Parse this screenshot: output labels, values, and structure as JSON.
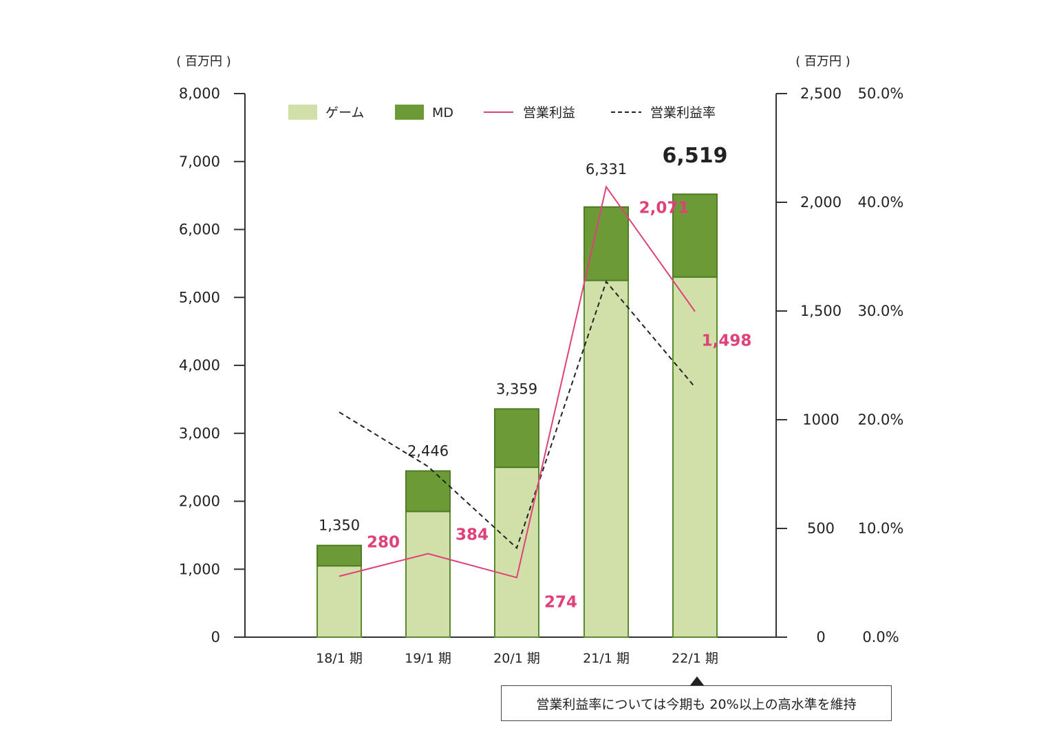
{
  "chart_data": {
    "type": "bar",
    "categories": [
      "18/1 期",
      "19/1 期",
      "20/1 期",
      "21/1 期",
      "22/1 期"
    ],
    "series": [
      {
        "name": "ゲーム",
        "type": "bar",
        "stack": "sales",
        "axis": "left",
        "color": "#d1e0a8",
        "stroke": "#5a8a2e",
        "values": [
          1050,
          1850,
          2500,
          5250,
          5300
        ]
      },
      {
        "name": "MD",
        "type": "bar",
        "stack": "sales",
        "axis": "left",
        "color": "#6b9a37",
        "stroke": "#4f7a26",
        "values": [
          300,
          596,
          859,
          1081,
          1219
        ]
      },
      {
        "name": "営業利益",
        "type": "line",
        "axis": "right",
        "color": "#e0407a",
        "values": [
          280,
          384,
          274,
          2071,
          1498
        ]
      },
      {
        "name": "営業利益率",
        "type": "line",
        "axis": "right2",
        "style": "dashed",
        "color": "#222222",
        "values": [
          20.7,
          15.7,
          8.2,
          32.7,
          23.0
        ]
      }
    ],
    "total_labels": [
      "1,350",
      "2,446",
      "3,359",
      "6,331",
      "6,519"
    ],
    "profit_labels": [
      "280",
      "384",
      "274",
      "2,071",
      "1,498"
    ],
    "left_axis": {
      "unit": "( 百万円 )",
      "ylim": [
        0,
        8000
      ],
      "ticks": [
        "0",
        "1,000",
        "2,000",
        "3,000",
        "4,000",
        "5,000",
        "6,000",
        "7,000",
        "8,000"
      ]
    },
    "right_axis": {
      "unit": "( 百万円 )",
      "ylim": [
        0,
        2500
      ],
      "ticks": [
        "0",
        "500",
        "1000",
        "1,500",
        "2,000",
        "2,500"
      ]
    },
    "right_axis2": {
      "ylim": [
        0,
        50
      ],
      "ticks": [
        "0.0%",
        "10.0%",
        "20.0%",
        "30.0%",
        "40.0%",
        "50.0%"
      ]
    },
    "legend": [
      "ゲーム",
      "MD",
      "営業利益",
      "営業利益率"
    ],
    "legend_position": "top",
    "grid": false
  },
  "note": {
    "text": "営業利益率については今期も 20%以上の高水準を維持"
  }
}
